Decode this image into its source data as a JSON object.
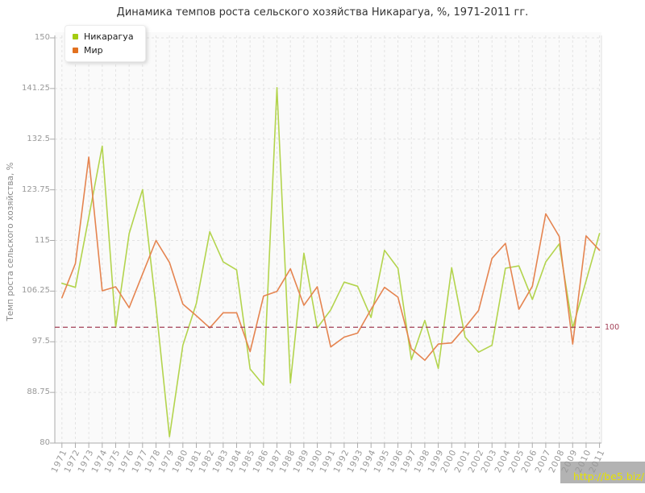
{
  "title": "Динамика темпов роста сельского хозяйства Никарагуа, %, 1971-2011 гг.",
  "y_axis": {
    "title": "Темп роста сельского хозяйства, %",
    "tick_labels": [
      "80",
      "88.75",
      "97.5",
      "106.25",
      "115",
      "123.75",
      "132.5",
      "141.25",
      "150"
    ]
  },
  "reference_line": {
    "value": 100,
    "label": "100",
    "color": "#a23f56"
  },
  "watermark": {
    "text": "http://be5.biz/",
    "text_color": "#e6e300",
    "bg_color": "#b3b3b3"
  },
  "colors": {
    "plot_bg": "#fafafa",
    "grid": "#e3e3e3",
    "axis": "#ababab",
    "right_border": "#e0e0e0",
    "tick_text": "#999999",
    "title_text": "#333333"
  },
  "chart_data": {
    "type": "line",
    "title": "Динамика темпов роста сельского хозяйства Никарагуа, %, 1971-2011 гг.",
    "ylabel": "Темп роста сельского хозяйства, %",
    "ylim": [
      80,
      150
    ],
    "yticks": [
      80,
      88.75,
      97.5,
      106.25,
      115,
      123.75,
      132.5,
      141.25,
      150
    ],
    "grid": true,
    "legend_position": "top-left",
    "reference_line": 100,
    "x": [
      1971,
      1972,
      1973,
      1974,
      1975,
      1976,
      1977,
      1978,
      1979,
      1980,
      1981,
      1982,
      1983,
      1984,
      1985,
      1986,
      1987,
      1988,
      1989,
      1990,
      1991,
      1992,
      1993,
      1994,
      1995,
      1996,
      1997,
      1998,
      1999,
      2000,
      2001,
      2002,
      2003,
      2004,
      2005,
      2006,
      2007,
      2008,
      2009,
      2010,
      2011
    ],
    "series": [
      {
        "name": "Никарагуа",
        "color": "#b3d44d",
        "marker_color": "#a4cc11",
        "values": [
          107.6,
          106.9,
          119,
          131.3,
          100,
          116.2,
          123.8,
          103.5,
          81.1,
          96.9,
          104.1,
          116.5,
          111.3,
          109.9,
          92.8,
          90,
          141.4,
          90.4,
          112.8,
          99.9,
          103,
          107.8,
          107.1,
          101.7,
          113.3,
          110.2,
          94.4,
          101.2,
          92.9,
          110.3,
          98.3,
          95.7,
          96.9,
          110.2,
          110.6,
          104.8,
          111.3,
          114.4,
          99.9,
          108,
          116.2
        ]
      },
      {
        "name": "Мир",
        "color": "#e58450",
        "marker_color": "#e2711f",
        "values": [
          105.1,
          111,
          129.4,
          106.3,
          107,
          103.4,
          109.2,
          115,
          111.2,
          104,
          102,
          99.9,
          102.5,
          102.5,
          95.8,
          105.4,
          106.2,
          110.1,
          103.8,
          107,
          96.6,
          98.3,
          99,
          103.1,
          106.9,
          105.2,
          96.3,
          94.3,
          97.1,
          97.3,
          100,
          102.9,
          111.9,
          114.5,
          103.1,
          107.1,
          119.6,
          115.7,
          97.1,
          115.8,
          113.3
        ]
      }
    ]
  }
}
